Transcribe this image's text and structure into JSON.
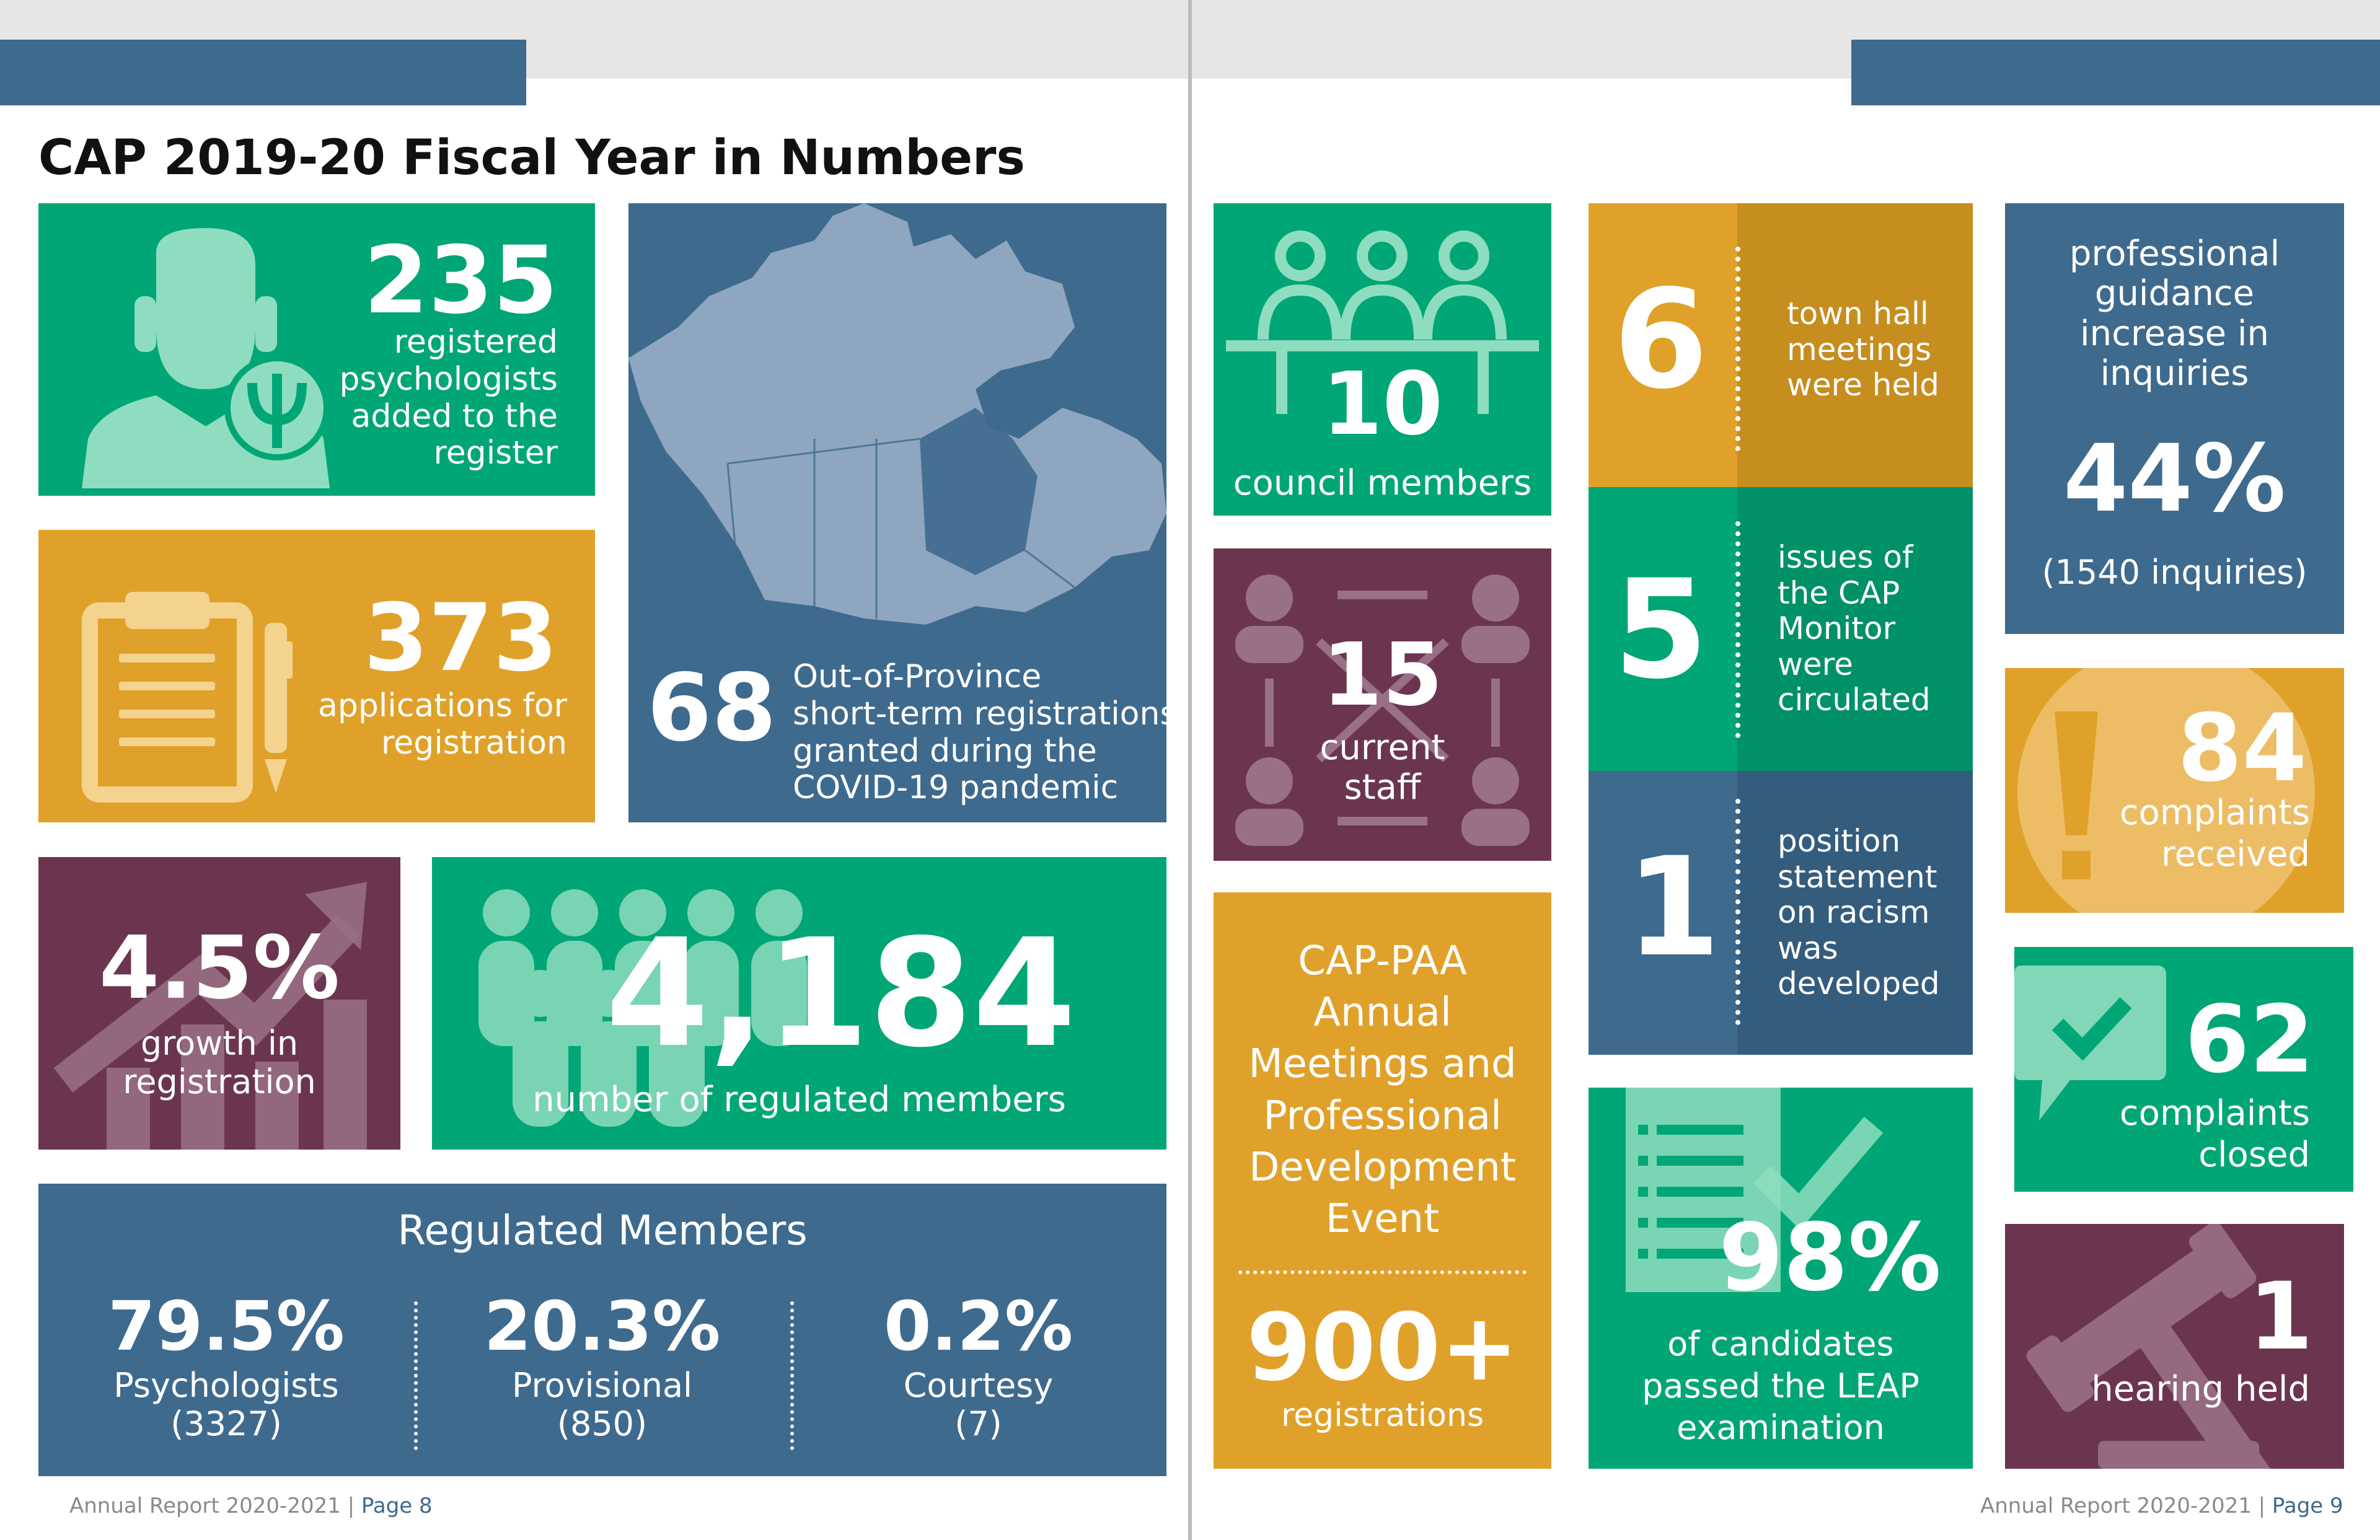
{
  "colors": {
    "green": "#00A675",
    "gold": "#E0A12A",
    "blue": "#3E6A8E",
    "plum": "#6B3550",
    "lightgrey": "#E6E6E6"
  },
  "page_left": {
    "title": "CAP 2019-20 Fiscal Year in Numbers",
    "footer": {
      "text": "Annual Report 2020-2021 | ",
      "page": "Page 8"
    },
    "psychologists": {
      "value": "235",
      "label": [
        "registered",
        "psychologists",
        "added to the",
        "register"
      ],
      "icon": "psychologist-icon"
    },
    "applications": {
      "value": "373",
      "label": [
        "applications for",
        "registration"
      ],
      "icon": "clipboard-icon"
    },
    "out_of_province": {
      "value": "68",
      "label": [
        "Out-of-Province",
        "short-term registrations",
        "granted during the",
        "COVID-19 pandemic"
      ],
      "icon": "canada-map-icon"
    },
    "growth": {
      "value": "4.5%",
      "label": [
        "growth in",
        "registration"
      ],
      "icon": "growth-arrow-icon"
    },
    "members": {
      "value": "4,184",
      "label": "number of regulated members",
      "icon": "crowd-icon"
    },
    "regulated": {
      "title": "Regulated Members",
      "items": [
        {
          "pct": "79.5%",
          "name": "Psychologists",
          "count": "(3327)"
        },
        {
          "pct": "20.3%",
          "name": "Provisional",
          "count": "(850)"
        },
        {
          "pct": "0.2%",
          "name": "Courtesy",
          "count": "(7)"
        }
      ]
    }
  },
  "page_right": {
    "footer": {
      "text": "Annual Report 2020-2021 | ",
      "page": "Page 9"
    },
    "council": {
      "value": "10",
      "label": "council members",
      "icon": "council-icon"
    },
    "staff": {
      "value": "15",
      "label": [
        "current",
        "staff"
      ],
      "icon": "network-icon"
    },
    "event": {
      "title": [
        "CAP-PAA",
        "Annual",
        "Meetings and",
        "Professional",
        "Development",
        "Event"
      ],
      "value": "900+",
      "label": "registrations"
    },
    "town_hall": {
      "value": "6",
      "label": [
        "town hall",
        "meetings",
        "were held"
      ]
    },
    "monitor": {
      "value": "5",
      "label": [
        "issues of",
        "the CAP",
        "Monitor",
        "were",
        "circulated"
      ]
    },
    "position": {
      "value": "1",
      "label": [
        "position",
        "statement",
        "on racism",
        "was",
        "developed"
      ]
    },
    "leap": {
      "value": "98%",
      "label": [
        "of candidates",
        "passed the LEAP",
        "examination"
      ],
      "icon": "checklist-icon"
    },
    "guidance": {
      "heading": [
        "professional",
        "guidance",
        "increase in",
        "inquiries"
      ],
      "value": "44%",
      "sub": "(1540 inquiries)"
    },
    "complaints_received": {
      "value": "84",
      "label": [
        "complaints",
        "received"
      ],
      "icon": "exclamation-icon"
    },
    "complaints_closed": {
      "value": "62",
      "label": [
        "complaints",
        "closed"
      ],
      "icon": "speech-check-icon"
    },
    "hearing": {
      "value": "1",
      "label": "hearing held",
      "icon": "gavel-icon"
    }
  }
}
